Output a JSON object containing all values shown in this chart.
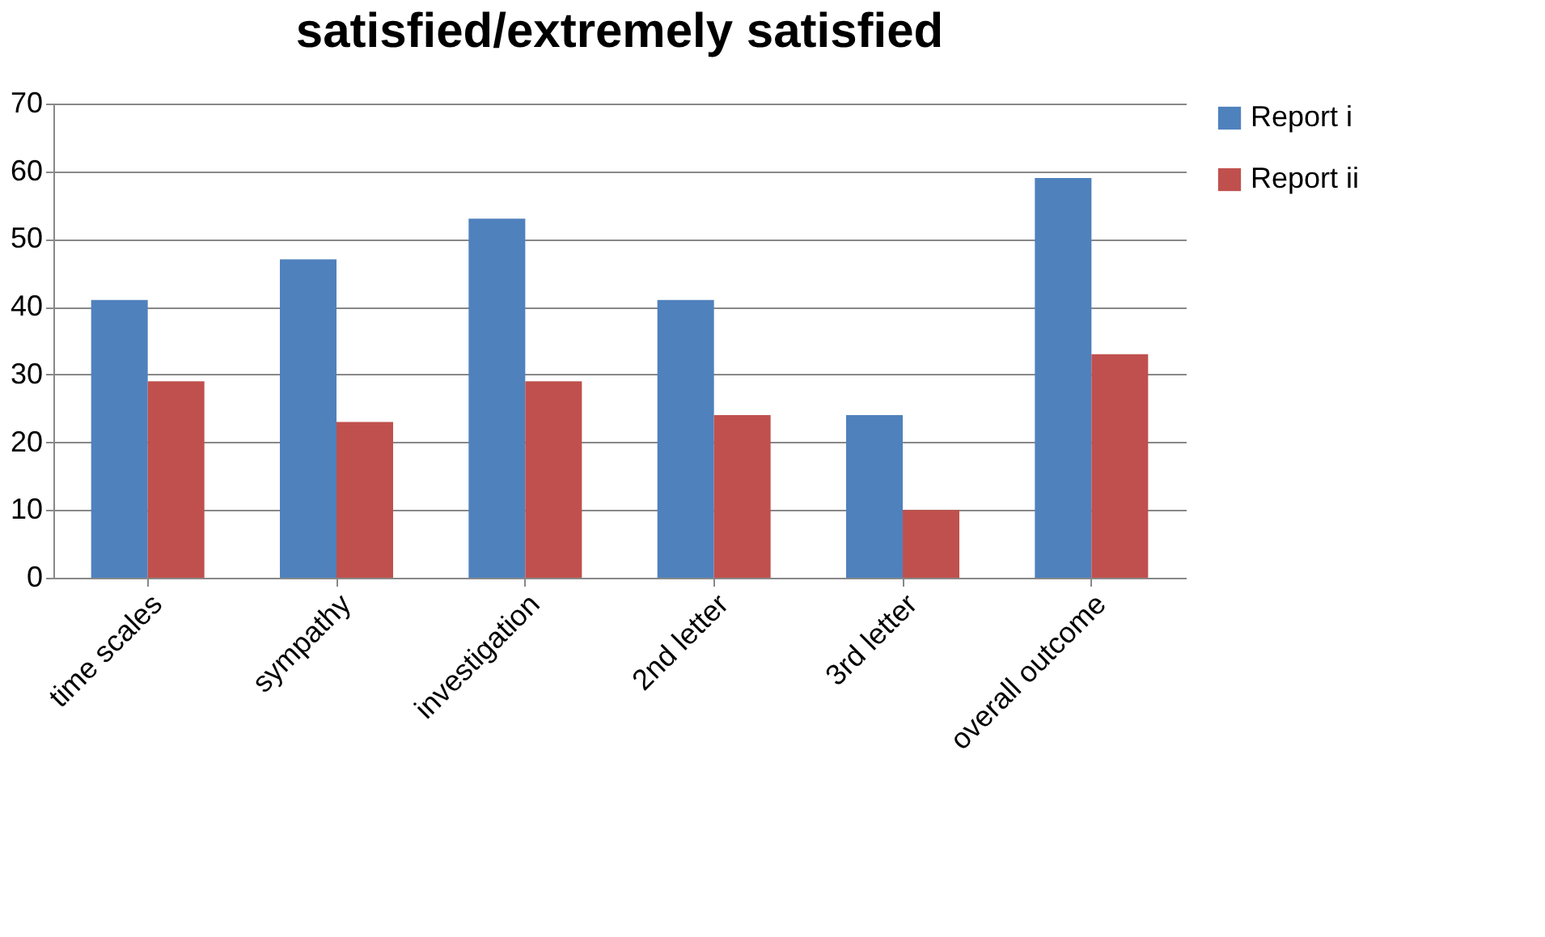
{
  "chart_data": {
    "type": "bar",
    "title": "satisfied/extremely satisfied",
    "categories": [
      "time scales",
      "sympathy",
      "investigation",
      "2nd letter",
      "3rd letter",
      "overall outcome"
    ],
    "series": [
      {
        "name": "Report i",
        "color": "#4f81bd",
        "values": [
          41,
          47,
          53,
          41,
          24,
          59
        ]
      },
      {
        "name": "Report ii",
        "color": "#c0504d",
        "values": [
          29,
          23,
          29,
          24,
          10,
          33
        ]
      }
    ],
    "ylim": [
      0,
      70
    ],
    "yticks": [
      0,
      10,
      20,
      30,
      40,
      50,
      60,
      70
    ],
    "grid": "y",
    "legend": "right"
  }
}
